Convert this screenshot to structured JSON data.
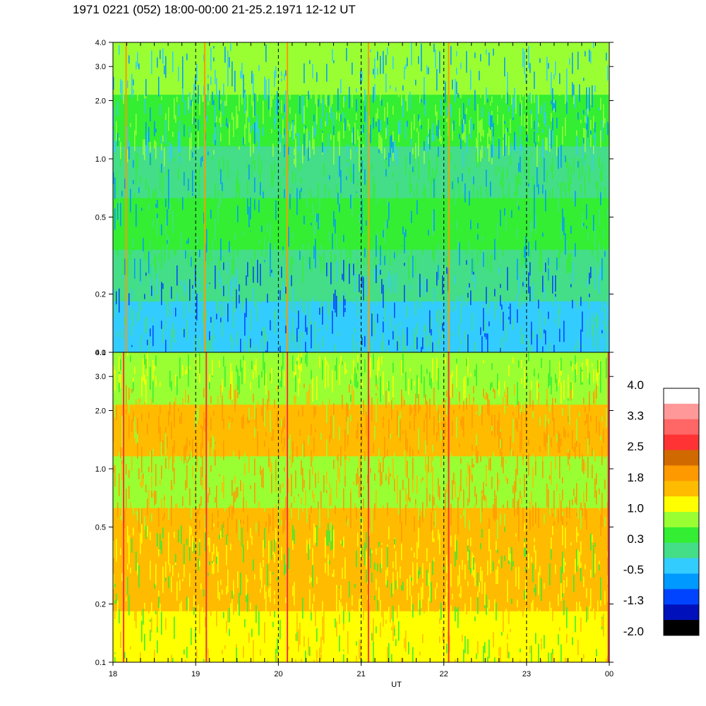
{
  "title": "1971 0221 (052) 18:00-00:00 21-25.2.1971  12-12 UT",
  "chart_data": {
    "type": "heatmap",
    "title": "1971 0221 (052) 18:00-00:00 21-25.2.1971  12-12 UT",
    "xlabel": "UT",
    "x_ticks": [
      "18",
      "19",
      "20",
      "21",
      "22",
      "23",
      "00"
    ],
    "x_range": [
      18,
      24
    ],
    "y_scale": "log",
    "y_range": [
      0.1,
      4.0
    ],
    "y_ticks": [
      "0.1",
      "0.2",
      "0.5",
      "1.0",
      "2.0",
      "3.0",
      "4.0"
    ],
    "y_tick_values": [
      0.1,
      0.2,
      0.5,
      1.0,
      2.0,
      3.0,
      4.0
    ],
    "hour_gridlines": [
      19,
      20,
      21,
      22,
      23
    ],
    "panels": [
      {
        "name": "upper",
        "dominant_levels": "-0.5 to 1.0",
        "spikes_at": [
          18.15,
          19.1,
          20.1,
          21.08,
          22.05
        ]
      },
      {
        "name": "lower",
        "dominant_levels": "0.3 to 1.8",
        "spikes_at": [
          18.12,
          19.12,
          20.1,
          21.08,
          22.05,
          23.98
        ]
      }
    ],
    "colorbar": {
      "labels": [
        "4.0",
        "3.3",
        "2.5",
        "1.8",
        "1.0",
        "0.3",
        "-0.5",
        "-1.3",
        "-2.0"
      ],
      "colors": [
        "#ffffff",
        "#ff9999",
        "#ff6666",
        "#ff3333",
        "#d06a00",
        "#ff9900",
        "#ffbb00",
        "#ffff00",
        "#99ff33",
        "#33ee33",
        "#44dd88",
        "#33ccff",
        "#0099ff",
        "#0044ff",
        "#0011bb",
        "#000000"
      ]
    }
  }
}
